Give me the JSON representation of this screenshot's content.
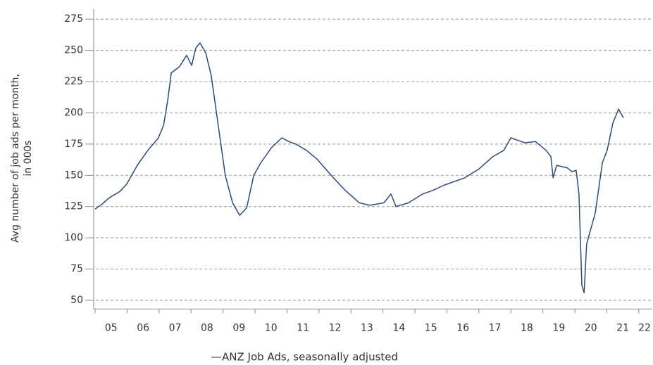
{
  "chart_data": {
    "type": "line",
    "ylabel": [
      "Avg number of job ads per month,",
      "in 000s"
    ],
    "x": [
      2005.0,
      2005.22,
      2005.44,
      2005.77,
      2005.99,
      2006.32,
      2006.65,
      2006.98,
      2007.14,
      2007.27,
      2007.38,
      2007.64,
      2007.86,
      2008.02,
      2008.15,
      2008.28,
      2008.46,
      2008.63,
      2008.85,
      2009.07,
      2009.3,
      2009.52,
      2009.74,
      2009.96,
      2010.18,
      2010.51,
      2010.84,
      2011.06,
      2011.28,
      2011.61,
      2011.94,
      2012.38,
      2012.82,
      2013.26,
      2013.59,
      2014.03,
      2014.25,
      2014.41,
      2014.8,
      2015.24,
      2015.57,
      2015.9,
      2016.56,
      2017.0,
      2017.44,
      2017.78,
      2018.0,
      2018.44,
      2018.77,
      2019.1,
      2019.25,
      2019.32,
      2019.43,
      2019.76,
      2019.91,
      2020.04,
      2020.13,
      2020.22,
      2020.29,
      2020.37,
      2020.64,
      2020.86,
      2021.01,
      2021.19,
      2021.37,
      2021.52
    ],
    "series": [
      {
        "name": "ANZ Job Ads, seasonally adjusted",
        "color": "#2e4a7a",
        "values": [
          123,
          127,
          132,
          137,
          143,
          158,
          170,
          180,
          190,
          210,
          232,
          237,
          246,
          238,
          252,
          256,
          248,
          230,
          190,
          150,
          128,
          118,
          124,
          150,
          160,
          172,
          180,
          177,
          175,
          170,
          163,
          150,
          138,
          128,
          126,
          128,
          135,
          125,
          128,
          135,
          138,
          142,
          148,
          155,
          165,
          170,
          180,
          176,
          177,
          170,
          165,
          148,
          158,
          156,
          153,
          154,
          135,
          62,
          56,
          95,
          120,
          160,
          170,
          192,
          203,
          196
        ]
      }
    ],
    "xlim": [
      2005,
      2022.4
    ],
    "xticks": [
      {
        "value": 2005,
        "label": "05"
      },
      {
        "value": 2006,
        "label": "06"
      },
      {
        "value": 2007,
        "label": "07"
      },
      {
        "value": 2008,
        "label": "08"
      },
      {
        "value": 2009,
        "label": "09"
      },
      {
        "value": 2010,
        "label": "10"
      },
      {
        "value": 2011,
        "label": "11"
      },
      {
        "value": 2012,
        "label": "12"
      },
      {
        "value": 2013,
        "label": "13"
      },
      {
        "value": 2014,
        "label": "14"
      },
      {
        "value": 2015,
        "label": "15"
      },
      {
        "value": 2016,
        "label": "16"
      },
      {
        "value": 2017,
        "label": "17"
      },
      {
        "value": 2018,
        "label": "18"
      },
      {
        "value": 2019,
        "label": "19"
      },
      {
        "value": 2020,
        "label": "20"
      },
      {
        "value": 2021,
        "label": "21"
      },
      {
        "value": 2022,
        "label": "22"
      }
    ],
    "ylim": [
      43,
      283
    ],
    "yticks": [
      50,
      75,
      100,
      125,
      150,
      175,
      200,
      225,
      250,
      275
    ],
    "grid": true
  }
}
